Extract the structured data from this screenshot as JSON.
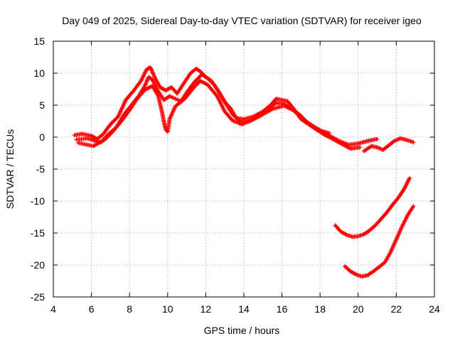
{
  "chart_data": {
    "type": "scatter",
    "title": "Day 049 of 2025, Sidereal Day-to-day VTEC variation (SDTVAR) for receiver igeo",
    "xlabel": "GPS time / hours",
    "ylabel": "SDTVAR / TECUs",
    "xlim": [
      4,
      24
    ],
    "ylim": [
      -25,
      15
    ],
    "xticks": [
      4,
      6,
      8,
      10,
      12,
      14,
      16,
      18,
      20,
      22,
      24
    ],
    "yticks": [
      -25,
      -20,
      -15,
      -10,
      -5,
      0,
      5,
      10,
      15
    ],
    "xtick_labels": [
      "4",
      "6",
      "8",
      "10",
      "12",
      "14",
      "16",
      "18",
      "20",
      "22",
      "24"
    ],
    "ytick_labels": [
      "-25",
      "-20",
      "-15",
      "-10",
      "-5",
      "0",
      "5",
      "10",
      "15"
    ],
    "grid": true,
    "marker": "plus",
    "series_color": "#ff0000",
    "series": [
      {
        "name": "satellite-band-upper",
        "x": [
          5.1,
          5.5,
          6.0,
          6.3,
          6.6,
          7.0,
          7.4,
          7.8,
          8.2,
          8.6,
          8.9,
          9.1,
          9.3,
          9.6,
          9.9,
          10.2,
          10.5,
          10.8,
          11.2,
          11.5,
          11.7,
          12.0,
          12.3,
          12.7,
          13.0,
          13.3,
          13.6,
          14.0,
          14.5,
          15.0,
          15.4,
          15.7,
          16.0,
          16.3,
          16.6,
          17.0,
          17.5,
          18.0,
          18.5
        ],
        "y": [
          0.3,
          0.5,
          0.2,
          -0.3,
          0.4,
          2.0,
          3.2,
          5.8,
          7.2,
          8.8,
          10.6,
          10.9,
          9.5,
          7.8,
          7.3,
          7.8,
          6.8,
          8.2,
          10.0,
          10.7,
          10.3,
          9.4,
          8.8,
          7.0,
          5.5,
          4.5,
          3.0,
          2.8,
          3.2,
          4.0,
          5.0,
          6.0,
          5.8,
          5.6,
          4.5,
          2.8,
          1.8,
          1.0,
          0.6
        ]
      },
      {
        "name": "satellite-band-mid",
        "x": [
          5.2,
          5.8,
          6.2,
          6.5,
          6.9,
          7.3,
          7.7,
          8.1,
          8.5,
          8.8,
          9.0,
          9.2,
          9.5,
          9.8,
          10.1,
          10.4,
          10.7,
          11.0,
          11.4,
          11.8,
          12.1,
          12.5,
          12.8,
          13.1,
          13.4,
          13.8,
          14.3,
          14.8,
          15.3,
          15.7,
          16.1,
          16.5,
          16.9,
          17.3,
          17.7,
          18.1,
          18.5,
          19.0,
          19.5,
          20.0,
          20.5,
          21.0
        ],
        "y": [
          -0.4,
          -0.2,
          -0.6,
          -0.8,
          0.5,
          1.5,
          3.5,
          5.0,
          6.5,
          8.0,
          9.4,
          9.0,
          7.2,
          5.8,
          6.4,
          6.0,
          5.6,
          7.0,
          8.6,
          9.8,
          9.2,
          8.0,
          6.5,
          5.0,
          3.6,
          2.4,
          2.6,
          3.4,
          4.4,
          5.4,
          5.2,
          4.4,
          3.6,
          2.4,
          1.6,
          0.9,
          0.2,
          -0.6,
          -1.2,
          -1.0,
          -0.6,
          -0.3
        ]
      },
      {
        "name": "satellite-band-lower",
        "x": [
          5.3,
          6.1,
          6.7,
          7.1,
          7.6,
          8.0,
          8.4,
          8.8,
          9.2,
          9.5,
          9.7,
          9.8,
          9.9,
          10.0,
          10.1,
          10.4,
          10.9,
          11.3,
          11.7,
          12.1,
          12.6,
          13.0,
          13.4,
          13.9,
          14.4,
          14.9,
          15.5,
          16.1,
          16.6,
          17.1,
          17.6,
          18.1,
          18.6,
          19.1,
          19.6,
          20.1
        ],
        "y": [
          -0.9,
          -1.4,
          -0.4,
          0.8,
          2.6,
          4.2,
          6.0,
          7.4,
          8.0,
          6.5,
          4.0,
          2.5,
          1.2,
          0.8,
          2.8,
          4.8,
          6.0,
          7.5,
          8.8,
          8.2,
          6.4,
          4.0,
          2.6,
          2.0,
          2.6,
          3.4,
          4.4,
          4.9,
          4.2,
          2.8,
          1.6,
          0.6,
          -0.2,
          -1.0,
          -1.8,
          -1.6
        ]
      },
      {
        "name": "satellite-late-band",
        "x": [
          20.3,
          20.7,
          21.0,
          21.3,
          21.6,
          21.9,
          22.2,
          22.5,
          22.9
        ],
        "y": [
          -2.2,
          -1.4,
          -1.6,
          -2.0,
          -1.3,
          -0.6,
          -0.2,
          -0.4,
          -0.8
        ]
      },
      {
        "name": "satellite-upper-arc",
        "x": [
          18.8,
          19.1,
          19.4,
          19.7,
          20.0,
          20.3,
          20.6,
          20.9,
          21.2,
          21.5,
          21.8,
          22.1,
          22.4,
          22.7
        ],
        "y": [
          -13.8,
          -14.8,
          -15.3,
          -15.6,
          -15.5,
          -15.2,
          -14.6,
          -13.8,
          -12.8,
          -11.8,
          -10.6,
          -9.5,
          -8.2,
          -6.4
        ]
      },
      {
        "name": "satellite-lower-arc",
        "x": [
          19.3,
          19.6,
          19.9,
          20.2,
          20.5,
          20.8,
          21.1,
          21.4,
          21.7,
          22.0,
          22.3,
          22.6,
          22.9
        ],
        "y": [
          -20.2,
          -21.0,
          -21.5,
          -21.8,
          -21.6,
          -21.0,
          -20.3,
          -19.6,
          -18.0,
          -16.0,
          -14.0,
          -12.2,
          -10.8
        ]
      }
    ]
  }
}
